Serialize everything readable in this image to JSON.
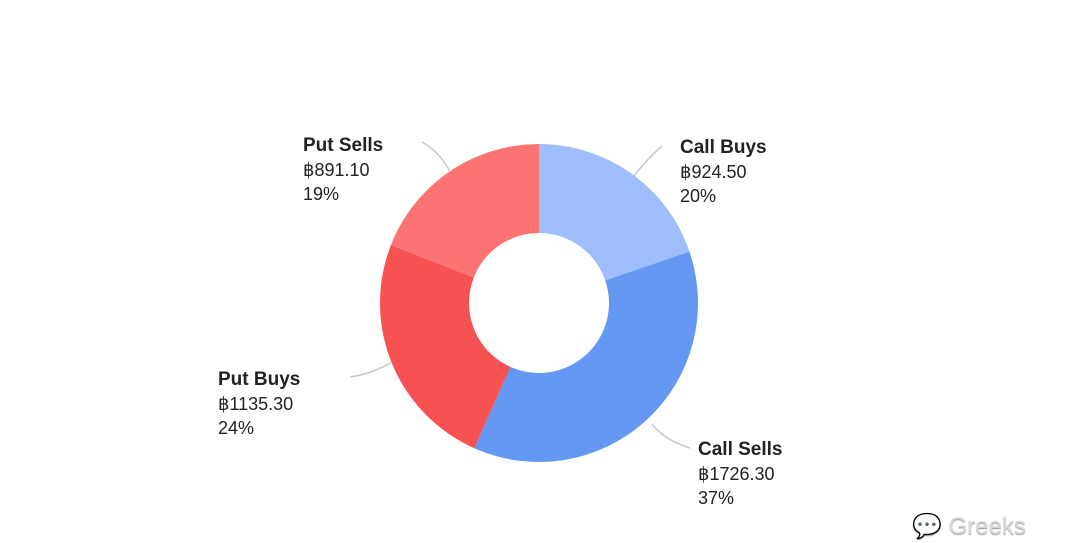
{
  "chart_data": {
    "type": "pie",
    "donut": true,
    "currency_symbol": "฿",
    "slices": [
      {
        "label": "Call Buys",
        "value": 924.5,
        "value_text": "฿924.50",
        "percent": "20%",
        "color": "#9dbdfb"
      },
      {
        "label": "Call Sells",
        "value": 1726.3,
        "value_text": "฿1726.30",
        "percent": "37%",
        "color": "#6498f3"
      },
      {
        "label": "Put Buys",
        "value": 1135.3,
        "value_text": "฿1135.30",
        "percent": "24%",
        "color": "#f65252"
      },
      {
        "label": "Put Sells",
        "value": 891.1,
        "value_text": "฿891.10",
        "percent": "19%",
        "color": "#fb7373"
      }
    ]
  },
  "watermark": "Greeks"
}
